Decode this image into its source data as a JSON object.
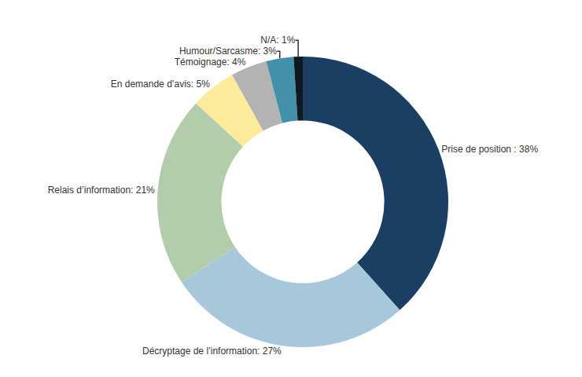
{
  "chart_data": {
    "type": "pie",
    "categories": [
      "Prise de position : 38%",
      "Décryptage de l’information: 27%",
      "Relais d’information: 21%",
      "En demande d’avis: 5%",
      "Témoignage: 4%",
      "Humour/Sarcasme: 3%",
      "N/A: 1%"
    ],
    "values": [
      38,
      27,
      21,
      5,
      4,
      3,
      1
    ],
    "colors": [
      "#1b3f63",
      "#a6c8da",
      "#b3ccab",
      "#fdeb9c",
      "#b3b3b3",
      "#4390aa",
      "#101820"
    ],
    "data_labels": true
  }
}
